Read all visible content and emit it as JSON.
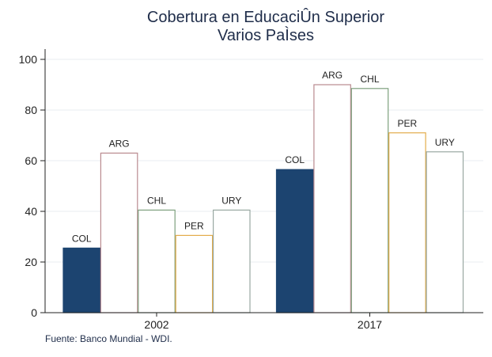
{
  "chart_data": {
    "type": "bar",
    "title": "Cobertura en EducaciÛn Superior",
    "subtitle": "Varios PaÌses",
    "categories": [
      "2002",
      "2017"
    ],
    "series": [
      {
        "name": "COL",
        "values": [
          25.5,
          56.5
        ],
        "filled": true
      },
      {
        "name": "ARG",
        "values": [
          63,
          90
        ],
        "filled": false
      },
      {
        "name": "CHL",
        "values": [
          40.5,
          88.5
        ],
        "filled": false
      },
      {
        "name": "PER",
        "values": [
          30.5,
          71
        ],
        "filled": false
      },
      {
        "name": "URY",
        "values": [
          40.5,
          63.5
        ],
        "filled": false
      }
    ],
    "ylim": [
      0,
      100
    ],
    "yticks": [
      0,
      20,
      40,
      60,
      80,
      100
    ],
    "xlabel": "",
    "ylabel": "",
    "grid": true,
    "source": "Fuente: Banco Mundial - WDI."
  },
  "colors": {
    "COL": "#1c4470",
    "ARG": "#b98a8f",
    "CHL": "#7ea07e",
    "PER": "#e3ac4a",
    "URY": "#99a8a2",
    "grid": "#e8eef2",
    "axis": "#222222"
  }
}
